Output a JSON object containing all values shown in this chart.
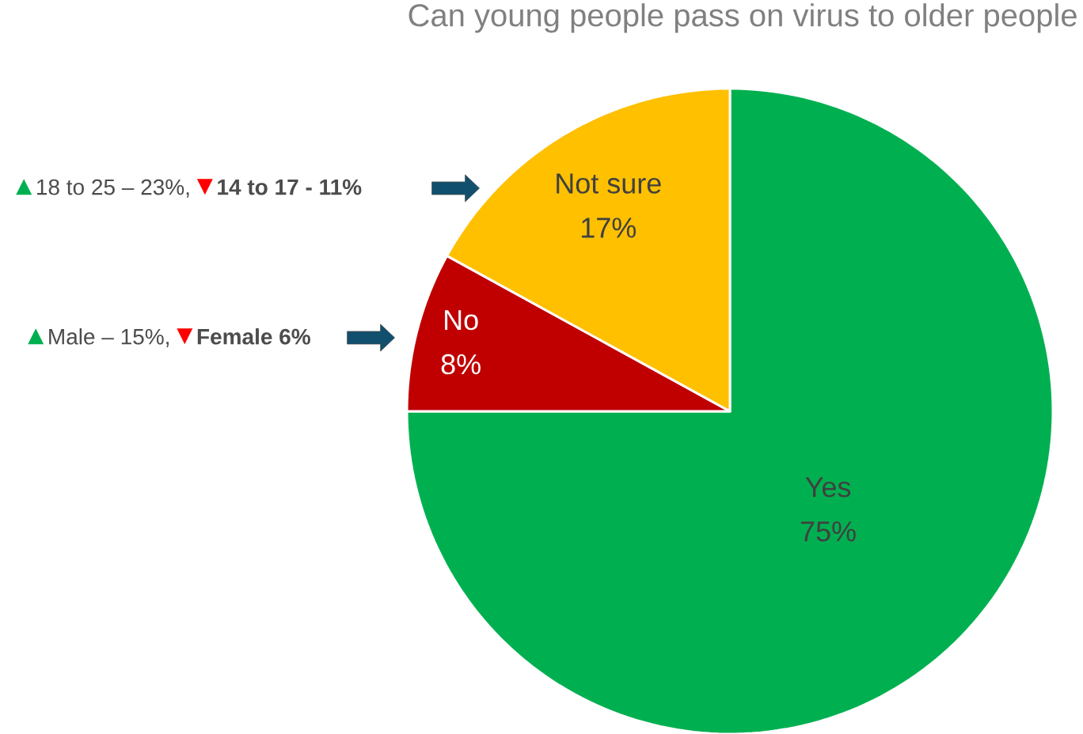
{
  "chart_data": {
    "type": "pie",
    "title": "Can young people pass on virus to older people",
    "categories": [
      "Yes",
      "No",
      "Not sure"
    ],
    "values": [
      75,
      8,
      17
    ],
    "colors": [
      "#00b050",
      "#c00000",
      "#ffc000"
    ],
    "value_labels": [
      "75%",
      "8%",
      "17%"
    ],
    "annotations": [
      "18 to 25 – 23%,",
      "14 to 17 - 11%",
      "Male – 15%,",
      "Female 6%"
    ]
  }
}
